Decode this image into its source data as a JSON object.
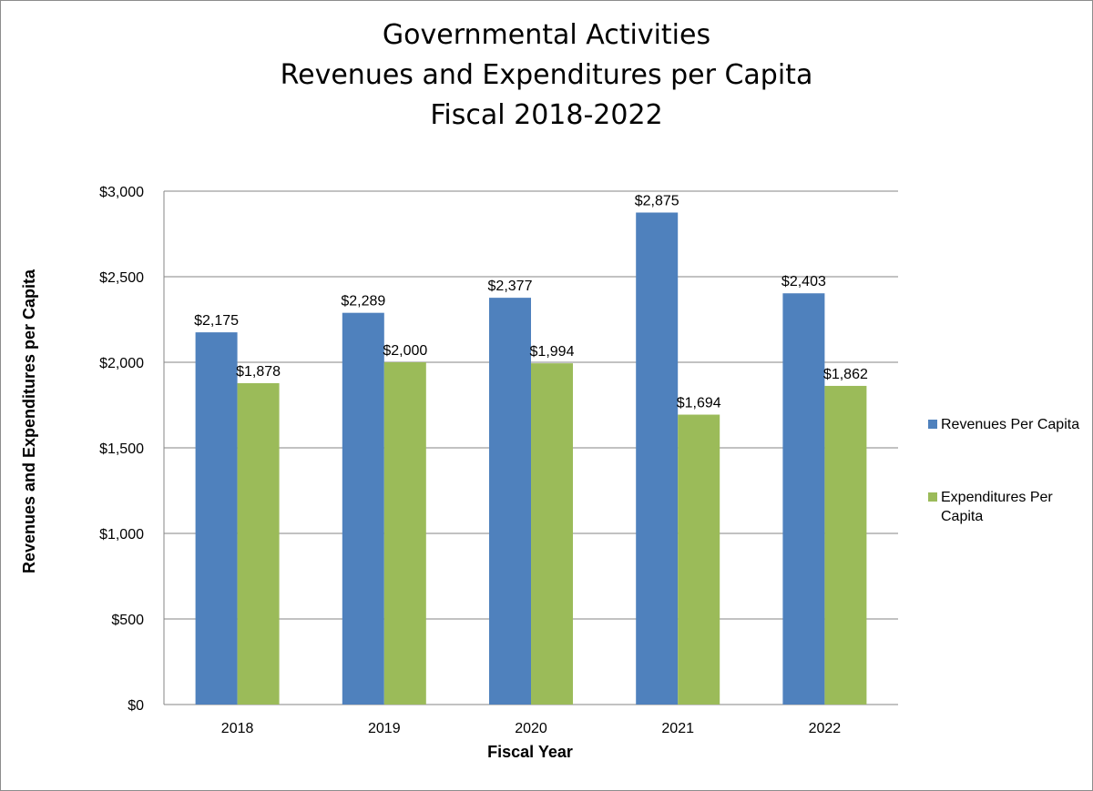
{
  "chart_data": {
    "type": "bar",
    "title": "Governmental Activities\nRevenues and Expenditures per Capita\nFiscal 2018-2022",
    "xlabel": "Fiscal Year",
    "ylabel": "Revenues and Expenditures per Capita",
    "categories": [
      "2018",
      "2019",
      "2020",
      "2021",
      "2022"
    ],
    "series": [
      {
        "name": "Revenues Per Capita",
        "color": "#4f81bd",
        "values": [
          2175,
          2289,
          2377,
          2875,
          2403
        ],
        "labels": [
          "$2,175",
          "$2,289",
          "$2,377",
          "$2,875",
          "$2,403"
        ]
      },
      {
        "name": "Expenditures Per Capita",
        "color": "#9bbb59",
        "values": [
          1878,
          2000,
          1994,
          1694,
          1862
        ],
        "labels": [
          "$1,878",
          "$2,000",
          "$1,994",
          "$1,694",
          "$1,862"
        ]
      }
    ],
    "ylim": [
      0,
      3000
    ],
    "yticks": [
      0,
      500,
      1000,
      1500,
      2000,
      2500,
      3000
    ],
    "ytick_labels": [
      "$0",
      "$500",
      "$1,000",
      "$1,500",
      "$2,000",
      "$2,500",
      "$3,000"
    ],
    "grid": true,
    "legend": "right"
  }
}
